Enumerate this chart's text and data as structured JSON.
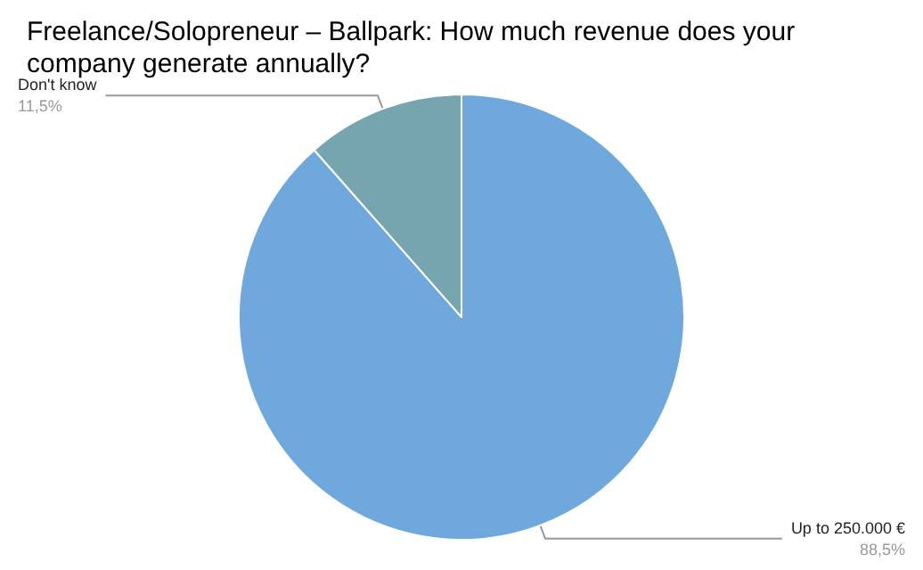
{
  "chart_data": {
    "type": "pie",
    "title": "Freelance/Solopreneur – Ballpark: How much revenue does your company generate annually?",
    "categories": [
      "Up to 250.000 €",
      "Don't know"
    ],
    "values": [
      88.5,
      11.5
    ],
    "value_labels": [
      "88,5%",
      "11,5%"
    ],
    "colors": [
      "#6fa8dc",
      "#76a5af"
    ],
    "legend": false
  }
}
